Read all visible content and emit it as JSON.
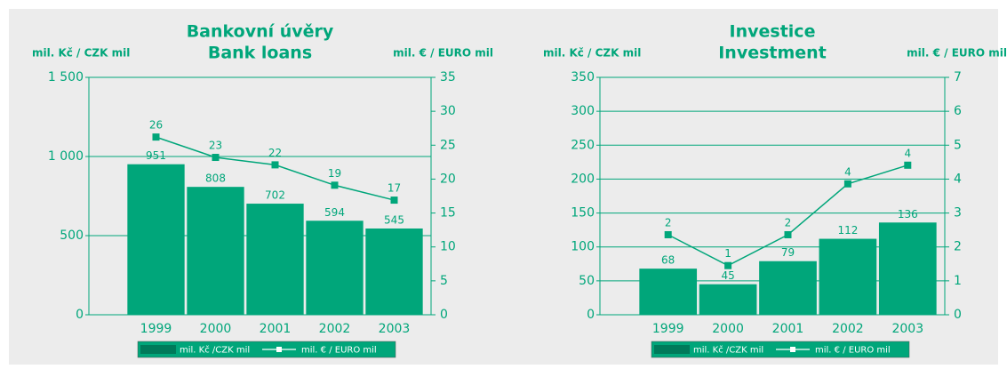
{
  "chart_data": [
    {
      "type": "bar",
      "title": "Bankovní úvěry",
      "subtitle": "Bank loans",
      "ylabel": "mil. Kč / CZK mil",
      "y2label": "mil. € / EURO mil",
      "categories": [
        "1999",
        "2000",
        "2001",
        "2002",
        "2003"
      ],
      "series": [
        {
          "name": "mil. Kč /CZK mil",
          "type": "bar",
          "color": "#00a67a",
          "values": [
            951,
            808,
            702,
            594,
            545
          ]
        },
        {
          "name": "mil. € / EURO mil",
          "type": "line",
          "axis": "y2",
          "color": "#00a67a",
          "values": [
            26.2,
            23.2,
            22.1,
            19.1,
            16.9
          ],
          "value_labels": [
            "26",
            "23",
            "22",
            "19",
            "17"
          ]
        }
      ],
      "ylim": [
        0,
        1500
      ],
      "yticks": [
        0,
        500,
        {
          "value": 1000,
          "label": "1 000"
        },
        {
          "value": 1500,
          "label": "1 500"
        }
      ],
      "y2lim": [
        0,
        35
      ],
      "y2ticks": [
        0,
        5,
        10,
        15,
        20,
        25,
        30,
        35
      ],
      "grid": true
    },
    {
      "type": "bar",
      "title": "Investice",
      "subtitle": "Investment",
      "ylabel": "mil. Kč / CZK mil",
      "y2label": "mil. € / EURO mil",
      "categories": [
        "1999",
        "2000",
        "2001",
        "2002",
        "2003"
      ],
      "series": [
        {
          "name": "mil. Kč /CZK mil",
          "type": "bar",
          "color": "#00a67a",
          "values": [
            68,
            45,
            79,
            112,
            136
          ]
        },
        {
          "name": "mil. € / EURO mil",
          "type": "line",
          "axis": "y2",
          "color": "#00a67a",
          "values": [
            2.36,
            1.45,
            2.36,
            3.86,
            4.41
          ],
          "value_labels": [
            "2",
            "1",
            "2",
            "4",
            "4"
          ]
        }
      ],
      "ylim": [
        0,
        350
      ],
      "yticks": [
        0,
        50,
        100,
        150,
        200,
        250,
        300,
        350
      ],
      "y2lim": [
        0,
        7
      ],
      "y2ticks": [
        0,
        1,
        2,
        3,
        4,
        5,
        6,
        7
      ],
      "grid": true
    }
  ]
}
